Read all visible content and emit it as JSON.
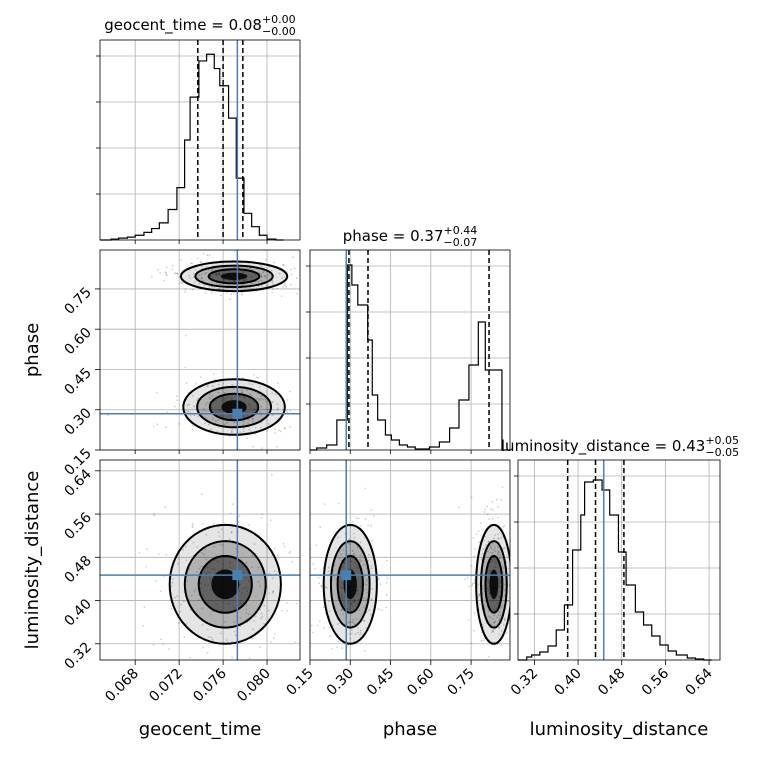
{
  "chart_data": {
    "type": "corner",
    "parameters": [
      {
        "name": "geocent_time",
        "title_value": "0.08",
        "title_plus": "+0.00",
        "title_minus": "−0.00",
        "range": [
          0.0648,
          0.083
        ],
        "ticks": [
          0.068,
          0.072,
          0.076,
          0.08
        ],
        "tick_labels": [
          "0.068",
          "0.072",
          "0.076",
          "0.080"
        ],
        "quantiles": [
          0.0737,
          0.076,
          0.0778
        ],
        "truth": 0.0773,
        "hist_edges": [
          0.0648,
          0.0658,
          0.0665,
          0.0673,
          0.068,
          0.0688,
          0.0695,
          0.0702,
          0.071,
          0.0718,
          0.0725,
          0.073,
          0.0738,
          0.0745,
          0.0752,
          0.0757,
          0.0765,
          0.0772,
          0.0779,
          0.0786,
          0.0793,
          0.08,
          0.0808,
          0.0815
        ],
        "hist_counts": [
          0,
          1,
          2,
          3,
          5,
          8,
          12,
          18,
          32,
          55,
          105,
          150,
          188,
          195,
          180,
          162,
          128,
          65,
          28,
          14,
          5,
          1,
          0
        ],
        "hist_max": 210
      },
      {
        "name": "phase",
        "title_value": "0.37",
        "title_plus": "+0.44",
        "title_minus": "−0.07",
        "range": [
          0.15,
          0.895
        ],
        "ticks": [
          0.15,
          0.3,
          0.45,
          0.6,
          0.75
        ],
        "tick_labels": [
          "0.15",
          "0.30",
          "0.45",
          "0.60",
          "0.75"
        ],
        "quantiles": [
          0.295,
          0.366,
          0.817
        ],
        "truth": 0.285,
        "hist_edges": [
          0.15,
          0.175,
          0.212,
          0.25,
          0.289,
          0.306,
          0.328,
          0.365,
          0.382,
          0.402,
          0.431,
          0.453,
          0.483,
          0.513,
          0.542,
          0.572,
          0.595,
          0.632,
          0.67,
          0.705,
          0.742,
          0.777,
          0.803,
          0.865,
          0.895
        ],
        "hist_counts": [
          0,
          2,
          5,
          30,
          185,
          165,
          145,
          110,
          55,
          30,
          15,
          10,
          5,
          3,
          1,
          1,
          3,
          8,
          22,
          50,
          85,
          128,
          80,
          0
        ],
        "hist_max": 200
      },
      {
        "name": "luminosity_distance",
        "title_value": "0.43",
        "title_plus": "+0.05",
        "title_minus": "−0.05",
        "range": [
          0.29,
          0.66
        ],
        "ticks": [
          0.32,
          0.4,
          0.48,
          0.56,
          0.64
        ],
        "tick_labels": [
          "0.32",
          "0.40",
          "0.48",
          "0.56",
          "0.64"
        ],
        "quantiles": [
          0.381,
          0.432,
          0.484
        ],
        "truth": 0.447,
        "hist_edges": [
          0.29,
          0.306,
          0.315,
          0.33,
          0.345,
          0.36,
          0.375,
          0.39,
          0.405,
          0.412,
          0.428,
          0.444,
          0.458,
          0.474,
          0.488,
          0.505,
          0.52,
          0.535,
          0.55,
          0.565,
          0.58,
          0.6,
          0.615,
          0.63,
          0.645
        ],
        "hist_counts": [
          0,
          3,
          5,
          8,
          14,
          30,
          55,
          110,
          145,
          178,
          180,
          170,
          145,
          108,
          75,
          48,
          35,
          24,
          15,
          9,
          5,
          2,
          1,
          0
        ],
        "hist_max": 200
      }
    ],
    "joint": [
      {
        "x": "geocent_time",
        "y": "phase",
        "modes": [
          {
            "cx": 0.077,
            "cy": 0.31,
            "sx": 0.0021,
            "sy": 0.047
          },
          {
            "cx": 0.077,
            "cy": 0.797,
            "sx": 0.0022,
            "sy": 0.025
          }
        ]
      },
      {
        "x": "geocent_time",
        "y": "luminosity_distance",
        "modes": [
          {
            "cx": 0.0762,
            "cy": 0.43,
            "sx": 0.0023,
            "sy": 0.05
          }
        ]
      },
      {
        "x": "phase",
        "y": "luminosity_distance",
        "modes": [
          {
            "cx": 0.3,
            "cy": 0.43,
            "sx": 0.045,
            "sy": 0.05
          },
          {
            "cx": 0.835,
            "cy": 0.43,
            "sx": 0.03,
            "sy": 0.05
          }
        ]
      }
    ],
    "truth_color": "#4a7fb5",
    "grid": true
  }
}
